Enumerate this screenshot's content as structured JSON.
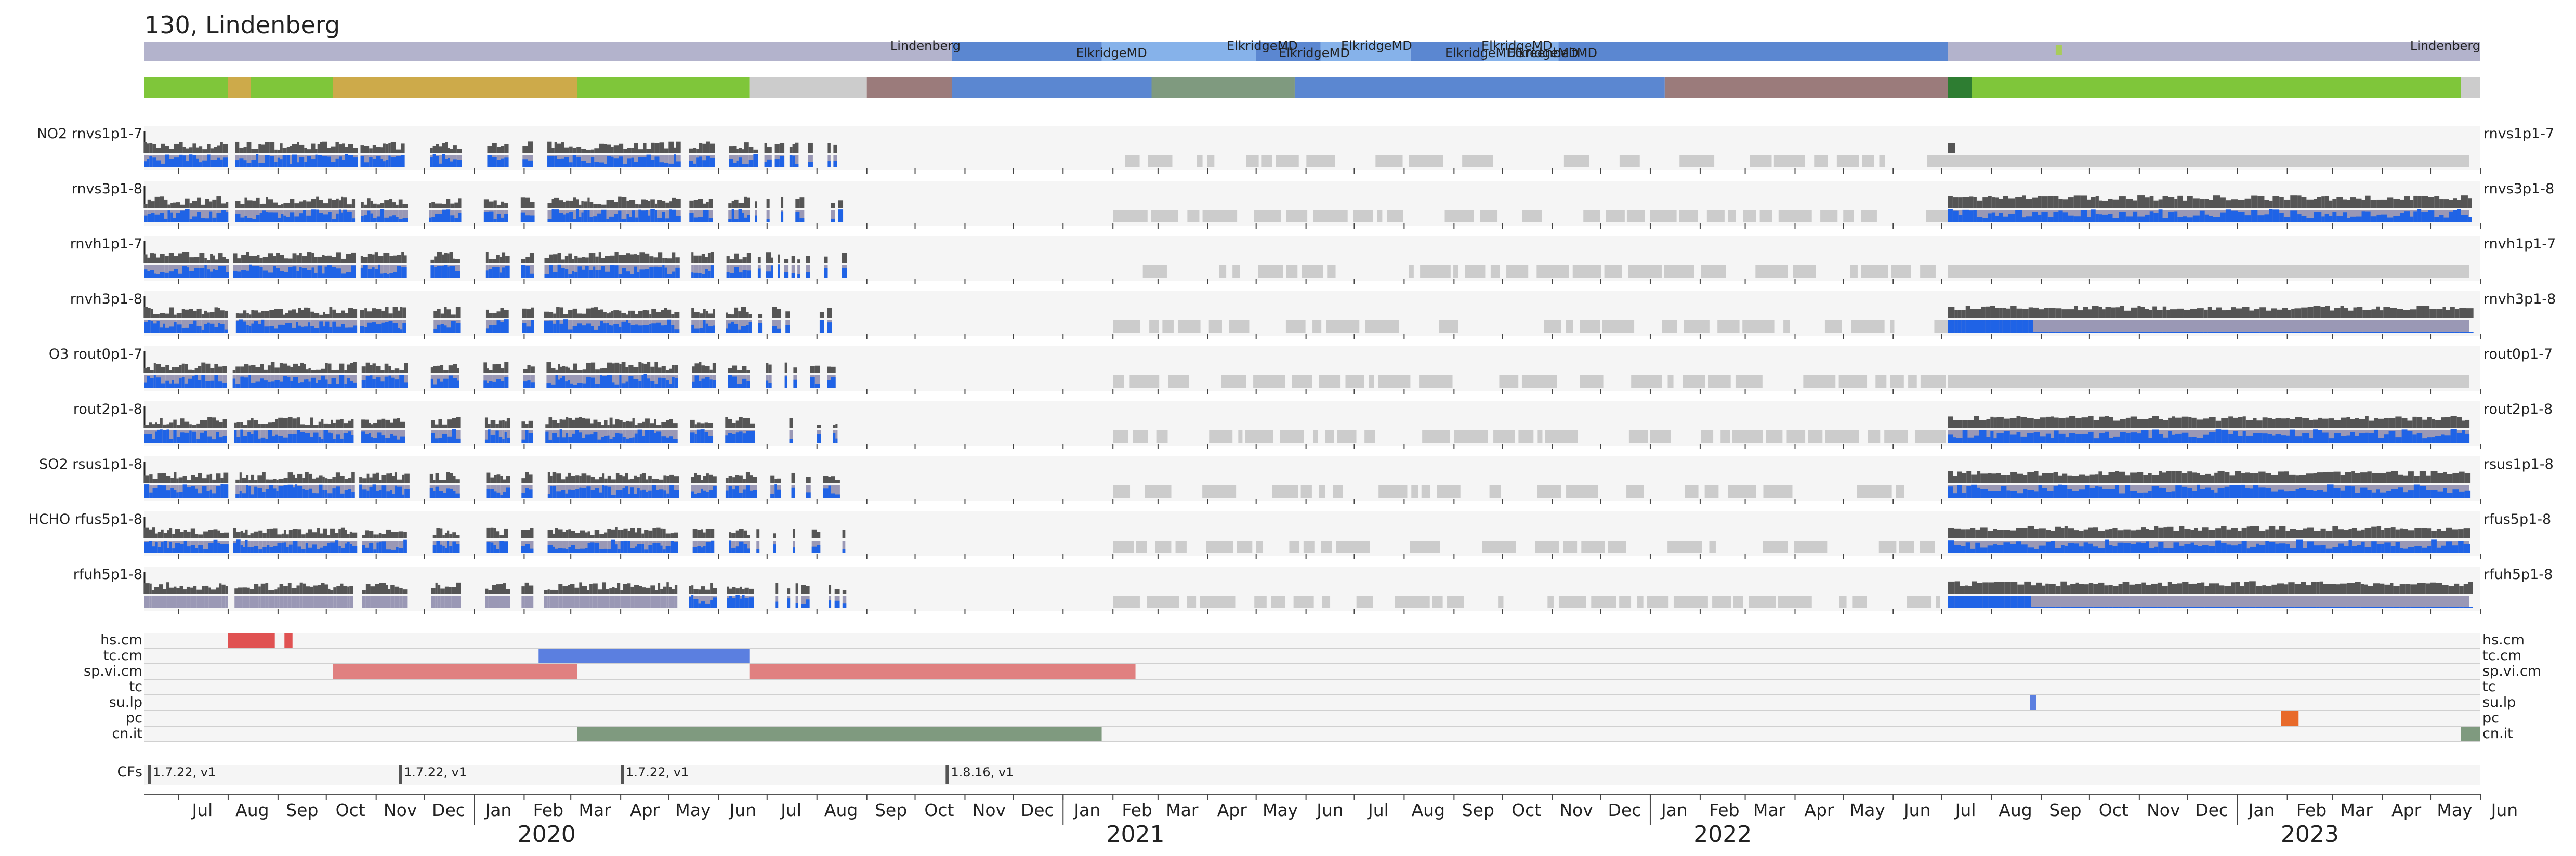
{
  "chart_data": {
    "type": "timeline-heatmap",
    "title": "130, Lindenberg",
    "x_range": [
      "2019-06-10",
      "2023-06-01"
    ],
    "months": [
      "Jul",
      "Aug",
      "Sep",
      "Oct",
      "Nov",
      "Dec",
      "Jan",
      "Feb",
      "Mar",
      "Apr",
      "May",
      "Jun",
      "Jul",
      "Aug",
      "Sep",
      "Oct",
      "Nov",
      "Dec",
      "Jan",
      "Feb",
      "Mar",
      "Apr",
      "May",
      "Jun",
      "Jul",
      "Aug",
      "Sep",
      "Oct",
      "Nov",
      "Dec",
      "Jan",
      "Feb",
      "Mar",
      "Apr",
      "May",
      "Jun",
      "Jul",
      "Aug",
      "Sep",
      "Oct",
      "Nov",
      "Dec",
      "Jan",
      "Feb",
      "Mar",
      "Apr",
      "May",
      "Jun"
    ],
    "years": [
      "2020",
      "2021",
      "2022",
      "2023"
    ],
    "location_labels": [
      "Lindenberg",
      "ElkridgeMD",
      "ElkridgeMD",
      "ElkridgeMD",
      "ElkridgeMD",
      "ElkridgeMD",
      "ElkridgeMD",
      "ElkridgeMD",
      "GreenbeltMD",
      "Lindenberg"
    ],
    "location_track": [
      {
        "start": "2019-06-10",
        "end": "2020-10-24",
        "color": "#b3b3cc"
      },
      {
        "start": "2020-10-24",
        "end": "2021-01-25",
        "color": "#5b87d1"
      },
      {
        "start": "2021-01-25",
        "end": "2021-02-20",
        "color": "#86b2ea"
      },
      {
        "start": "2021-02-20",
        "end": "2021-05-01",
        "color": "#86b2ea"
      },
      {
        "start": "2021-05-01",
        "end": "2021-06-10",
        "color": "#5b87d1"
      },
      {
        "start": "2021-06-10",
        "end": "2021-08-05",
        "color": "#86b2ea"
      },
      {
        "start": "2021-08-05",
        "end": "2021-09-20",
        "color": "#5b87d1"
      },
      {
        "start": "2021-09-20",
        "end": "2021-11-05",
        "color": "#86b2ea"
      },
      {
        "start": "2021-11-05",
        "end": "2022-07-05",
        "color": "#5b87d1"
      },
      {
        "start": "2022-07-05",
        "end": "2023-06-01",
        "color": "#b3b3cc"
      }
    ],
    "status_track": [
      {
        "start": "2019-06-10",
        "end": "2019-08-01",
        "color": "#7fc63a"
      },
      {
        "start": "2019-08-01",
        "end": "2019-08-15",
        "color": "#cdaa4a"
      },
      {
        "start": "2019-08-15",
        "end": "2019-10-05",
        "color": "#7fc63a"
      },
      {
        "start": "2019-10-05",
        "end": "2020-03-05",
        "color": "#cdaa4a"
      },
      {
        "start": "2020-03-05",
        "end": "2020-06-20",
        "color": "#7fc63a"
      },
      {
        "start": "2020-06-20",
        "end": "2020-09-01",
        "color": "#cccccc"
      },
      {
        "start": "2020-09-01",
        "end": "2020-10-24",
        "color": "#9b7b7b"
      },
      {
        "start": "2020-10-24",
        "end": "2021-02-25",
        "color": "#5b87d1"
      },
      {
        "start": "2021-02-25",
        "end": "2021-05-25",
        "color": "#7f9a7f"
      },
      {
        "start": "2021-05-25",
        "end": "2021-10-20",
        "color": "#5b87d1"
      },
      {
        "start": "2021-10-20",
        "end": "2022-01-10",
        "color": "#5b87d1"
      },
      {
        "start": "2022-01-10",
        "end": "2022-07-05",
        "color": "#9b7b7b"
      },
      {
        "start": "2022-07-05",
        "end": "2022-07-20",
        "color": "#2e7d32"
      },
      {
        "start": "2022-07-20",
        "end": "2023-05-20",
        "color": "#7fc63a"
      },
      {
        "start": "2023-05-20",
        "end": "2023-06-01",
        "color": "#cccccc"
      }
    ],
    "panels": [
      {
        "left_label": "NO2  rnvs1p1-7",
        "right_label": "rnvs1p1-7"
      },
      {
        "left_label": "rnvs3p1-8",
        "right_label": "rnvs3p1-8"
      },
      {
        "left_label": "rnvh1p1-7",
        "right_label": "rnvh1p1-7"
      },
      {
        "left_label": "rnvh3p1-8",
        "right_label": "rnvh3p1-8"
      },
      {
        "left_label": "O3  rout0p1-7",
        "right_label": "rout0p1-7"
      },
      {
        "left_label": "rout2p1-8",
        "right_label": "rout2p1-8"
      },
      {
        "left_label": "SO2  rsus1p1-8",
        "right_label": "rsus1p1-8"
      },
      {
        "left_label": "HCHO  rfus5p1-8",
        "right_label": "rfus5p1-8"
      },
      {
        "left_label": "rfuh5p1-8",
        "right_label": "rfuh5p1-8"
      }
    ],
    "data_periods": {
      "early": [
        "2019-06-10",
        "2020-06-20"
      ],
      "gap_gray": [
        "2021-02-01",
        "2022-07-01"
      ],
      "late": [
        "2022-07-05",
        "2023-05-25"
      ]
    },
    "events": [
      {
        "label": "hs.cm",
        "segments": [
          {
            "start": "2019-08-01",
            "end": "2019-08-30",
            "color": "#e05252"
          },
          {
            "start": "2019-09-05",
            "end": "2019-09-10",
            "color": "#e05252"
          }
        ]
      },
      {
        "label": "tc.cm",
        "segments": [
          {
            "start": "2020-02-10",
            "end": "2020-06-20",
            "color": "#5b7fe0"
          }
        ]
      },
      {
        "label": "sp.vi.cm",
        "segments": [
          {
            "start": "2019-10-05",
            "end": "2020-03-05",
            "color": "#e08080"
          },
          {
            "start": "2020-06-20",
            "end": "2021-02-15",
            "color": "#e08080"
          }
        ]
      },
      {
        "label": "tc",
        "segments": []
      },
      {
        "label": "su.lp",
        "segments": [
          {
            "start": "2022-08-25",
            "end": "2022-08-29",
            "color": "#5b7fe0"
          }
        ]
      },
      {
        "label": "pc",
        "segments": [
          {
            "start": "2023-01-28",
            "end": "2023-02-08",
            "color": "#e86a2a"
          }
        ]
      },
      {
        "label": "cn.it",
        "segments": [
          {
            "start": "2020-03-05",
            "end": "2021-01-25",
            "color": "#7f9a7f"
          },
          {
            "start": "2023-05-20",
            "end": "2023-06-01",
            "color": "#7f9a7f"
          }
        ]
      }
    ],
    "cfs_label": "CFs",
    "cfs": [
      {
        "date": "2019-06-12",
        "label": "1.7.22, v1"
      },
      {
        "date": "2019-11-15",
        "label": "1.7.22, v1"
      },
      {
        "date": "2020-04-01",
        "label": "1.7.22, v1"
      },
      {
        "date": "2020-10-20",
        "label": "1.8.16, v1"
      }
    ],
    "colors": {
      "panel_bg": "#f5f5f5",
      "bar_dark": "#555555",
      "bar_blue": "#1f63e6",
      "bar_lav": "#9a98b5",
      "gap_gray": "#cccccc",
      "row_line": "#d0d0d0"
    }
  }
}
